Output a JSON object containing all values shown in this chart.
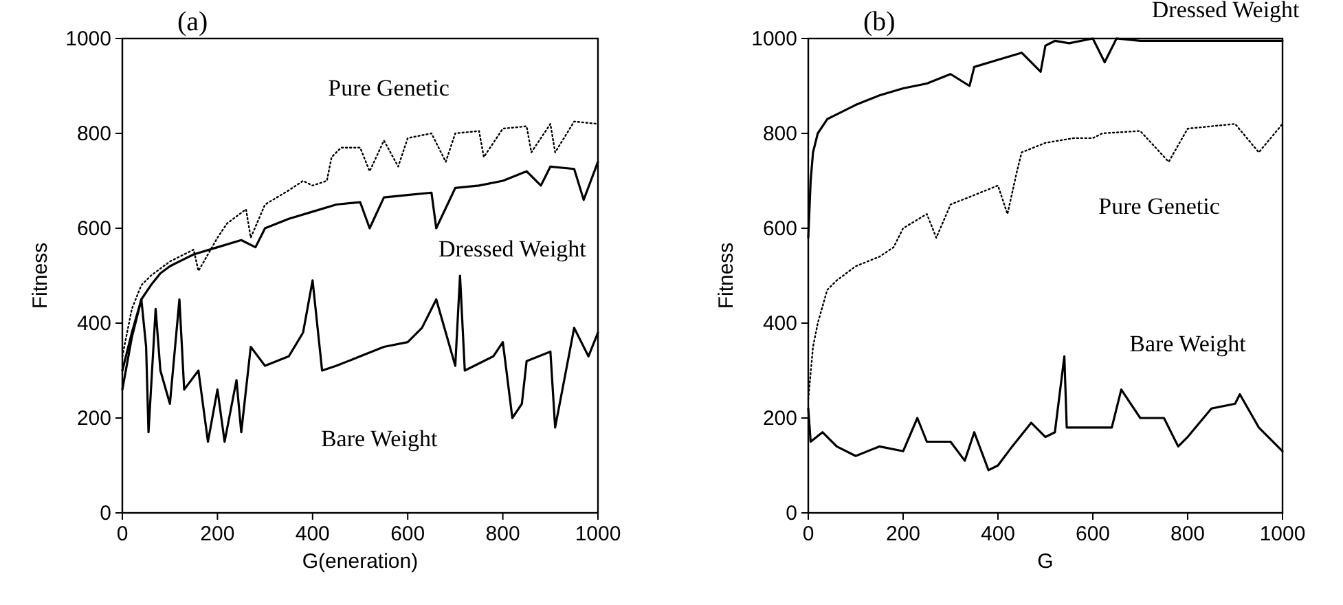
{
  "chart_data": [
    {
      "type": "line",
      "title": "(a)",
      "xlabel": "G(eneration)",
      "ylabel": "Fitness",
      "xlim": [
        0,
        1000
      ],
      "ylim": [
        0,
        1000
      ],
      "xticks": [
        0,
        200,
        400,
        600,
        800,
        1000
      ],
      "yticks": [
        0,
        200,
        400,
        600,
        800,
        1000
      ],
      "grid": false,
      "marker": "none",
      "series": [
        {
          "name": "Pure Genetic",
          "color": "#000000",
          "line_style": "dotted",
          "x": [
            0,
            20,
            40,
            60,
            100,
            150,
            160,
            200,
            220,
            260,
            270,
            300,
            350,
            380,
            400,
            430,
            440,
            460,
            500,
            520,
            550,
            580,
            600,
            650,
            680,
            700,
            750,
            760,
            800,
            850,
            860,
            900,
            910,
            950,
            1000
          ],
          "values": [
            330,
            430,
            480,
            500,
            530,
            555,
            510,
            580,
            610,
            640,
            580,
            650,
            680,
            700,
            690,
            700,
            750,
            770,
            770,
            720,
            785,
            730,
            790,
            800,
            740,
            800,
            805,
            750,
            810,
            815,
            760,
            820,
            760,
            825,
            820
          ]
        },
        {
          "name": "Dressed Weight",
          "color": "#000000",
          "line_style": "solid",
          "x": [
            0,
            20,
            40,
            60,
            80,
            100,
            150,
            200,
            250,
            280,
            300,
            350,
            400,
            450,
            500,
            520,
            550,
            600,
            650,
            660,
            700,
            750,
            800,
            850,
            880,
            900,
            950,
            970,
            1000
          ],
          "values": [
            300,
            380,
            450,
            480,
            505,
            520,
            545,
            560,
            575,
            560,
            600,
            620,
            635,
            650,
            655,
            600,
            665,
            670,
            675,
            600,
            685,
            690,
            700,
            720,
            690,
            730,
            725,
            660,
            740
          ]
        },
        {
          "name": "Bare Weight",
          "color": "#000000",
          "line_style": "solid",
          "x": [
            0,
            20,
            40,
            50,
            55,
            70,
            80,
            100,
            120,
            130,
            160,
            180,
            200,
            215,
            240,
            250,
            270,
            300,
            350,
            380,
            400,
            420,
            450,
            500,
            550,
            600,
            630,
            660,
            680,
            700,
            710,
            720,
            780,
            800,
            820,
            840,
            850,
            900,
            910,
            950,
            980,
            1000
          ],
          "values": [
            260,
            370,
            450,
            350,
            170,
            430,
            300,
            230,
            450,
            260,
            300,
            150,
            260,
            150,
            280,
            170,
            350,
            310,
            330,
            380,
            490,
            300,
            310,
            330,
            350,
            360,
            390,
            450,
            380,
            310,
            500,
            300,
            330,
            360,
            200,
            230,
            320,
            340,
            180,
            390,
            330,
            380
          ]
        }
      ]
    },
    {
      "type": "line",
      "title": "(b)",
      "xlabel": "G",
      "ylabel": "Fitness",
      "xlim": [
        0,
        1000
      ],
      "ylim": [
        0,
        1000
      ],
      "xticks": [
        0,
        200,
        400,
        600,
        800,
        1000
      ],
      "yticks": [
        0,
        200,
        400,
        600,
        800,
        1000
      ],
      "grid": false,
      "marker": "none",
      "series": [
        {
          "name": "Dressed Weight",
          "color": "#000000",
          "line_style": "solid",
          "x": [
            0,
            5,
            10,
            20,
            40,
            60,
            100,
            150,
            200,
            250,
            300,
            340,
            350,
            400,
            450,
            490,
            500,
            520,
            550,
            600,
            625,
            650,
            700,
            800,
            900,
            1000
          ],
          "values": [
            580,
            700,
            760,
            800,
            830,
            840,
            860,
            880,
            895,
            905,
            925,
            900,
            940,
            955,
            970,
            930,
            985,
            995,
            990,
            1000,
            950,
            1000,
            995,
            995,
            995,
            995
          ]
        },
        {
          "name": "Pure Genetic",
          "color": "#000000",
          "line_style": "dotted",
          "x": [
            0,
            10,
            20,
            40,
            60,
            100,
            150,
            180,
            200,
            250,
            270,
            300,
            350,
            400,
            420,
            440,
            450,
            500,
            560,
            600,
            620,
            700,
            760,
            800,
            900,
            950,
            1000
          ],
          "values": [
            240,
            350,
            400,
            470,
            490,
            520,
            540,
            560,
            600,
            630,
            580,
            650,
            670,
            690,
            630,
            720,
            760,
            780,
            790,
            790,
            800,
            805,
            740,
            810,
            820,
            760,
            820
          ]
        },
        {
          "name": "Bare Weight",
          "color": "#000000",
          "line_style": "solid",
          "x": [
            0,
            5,
            30,
            60,
            100,
            150,
            200,
            230,
            250,
            300,
            330,
            350,
            380,
            400,
            430,
            470,
            500,
            520,
            540,
            545,
            600,
            640,
            660,
            680,
            700,
            750,
            780,
            800,
            850,
            900,
            910,
            950,
            1000
          ],
          "values": [
            220,
            150,
            170,
            140,
            120,
            140,
            130,
            200,
            150,
            150,
            110,
            170,
            90,
            100,
            140,
            190,
            160,
            170,
            330,
            180,
            180,
            180,
            260,
            230,
            200,
            200,
            140,
            160,
            220,
            230,
            250,
            180,
            130
          ]
        }
      ]
    }
  ]
}
